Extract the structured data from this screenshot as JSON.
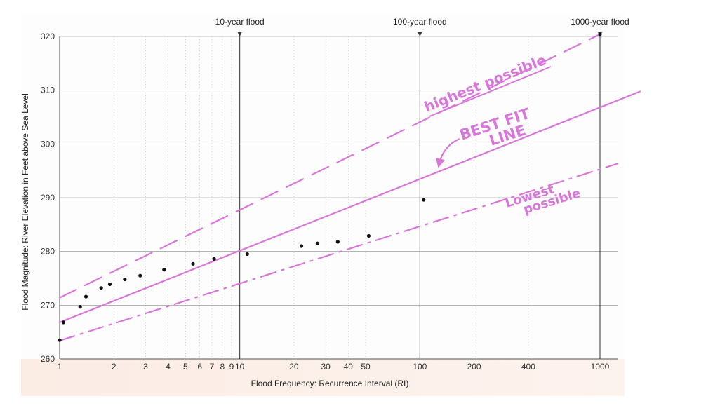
{
  "chart_data": {
    "type": "scatter",
    "title": "",
    "xlabel": "Flood Frequency: Recurrence Interval (RI)",
    "ylabel": "Flood Magnitude: River Elevation in Feet above Sea Level",
    "x_scale": "log",
    "xlim": [
      1,
      1000
    ],
    "ylim": [
      260,
      320
    ],
    "x_ticks": [
      1,
      2,
      3,
      4,
      5,
      6,
      7,
      8,
      9,
      10,
      20,
      30,
      40,
      50,
      100,
      200,
      400,
      1000
    ],
    "x_tick_labels": [
      "1",
      "2",
      "3",
      "4",
      "5",
      "6",
      "7",
      "8",
      "9",
      "10",
      "20",
      "30",
      "40",
      "50",
      "100",
      "200",
      "400",
      "1000"
    ],
    "y_ticks": [
      260,
      270,
      280,
      290,
      300,
      310,
      320
    ],
    "y_tick_labels": [
      "260",
      "270",
      "280",
      "290",
      "300",
      "310",
      "320"
    ],
    "grid": true,
    "reference_lines": [
      {
        "label": "10-year flood",
        "x": 10
      },
      {
        "label": "100-year flood",
        "x": 100
      },
      {
        "label": "1000-year flood",
        "x": 1000
      }
    ],
    "points": [
      {
        "x": 1.0,
        "y": 263.5
      },
      {
        "x": 1.05,
        "y": 266.8
      },
      {
        "x": 1.3,
        "y": 269.7
      },
      {
        "x": 1.4,
        "y": 271.6
      },
      {
        "x": 1.7,
        "y": 273.2
      },
      {
        "x": 1.9,
        "y": 273.9
      },
      {
        "x": 2.3,
        "y": 274.8
      },
      {
        "x": 2.8,
        "y": 275.5
      },
      {
        "x": 3.8,
        "y": 276.6
      },
      {
        "x": 5.5,
        "y": 277.7
      },
      {
        "x": 7.2,
        "y": 278.6
      },
      {
        "x": 11,
        "y": 279.5
      },
      {
        "x": 22,
        "y": 281
      },
      {
        "x": 27,
        "y": 281.5
      },
      {
        "x": 35,
        "y": 281.8
      },
      {
        "x": 52,
        "y": 282.9
      },
      {
        "x": 105,
        "y": 289.6
      },
      {
        "x": 1000,
        "y": 320.4
      }
    ],
    "series": [
      {
        "name": "BEST FIT LINE",
        "style": "solid",
        "x": [
          1,
          1000
        ],
        "y": [
          266.8,
          306.8
        ]
      },
      {
        "name": "highest possible",
        "style": "dashed",
        "x": [
          1,
          1000
        ],
        "y": [
          271.4,
          320.4
        ]
      },
      {
        "name": "lowest possible",
        "style": "dash-dot",
        "x": [
          1,
          1000
        ],
        "y": [
          263.4,
          295.3
        ]
      }
    ],
    "colors": {
      "annotation": "#d877d9",
      "points": "#111111",
      "grid": "#8a8a8a"
    },
    "annotations": {
      "highest": "highest possible",
      "best_fit_1": "BEST FIT",
      "best_fit_2": "LINE",
      "lowest_1": "Lowest",
      "lowest_2": "possible"
    }
  }
}
